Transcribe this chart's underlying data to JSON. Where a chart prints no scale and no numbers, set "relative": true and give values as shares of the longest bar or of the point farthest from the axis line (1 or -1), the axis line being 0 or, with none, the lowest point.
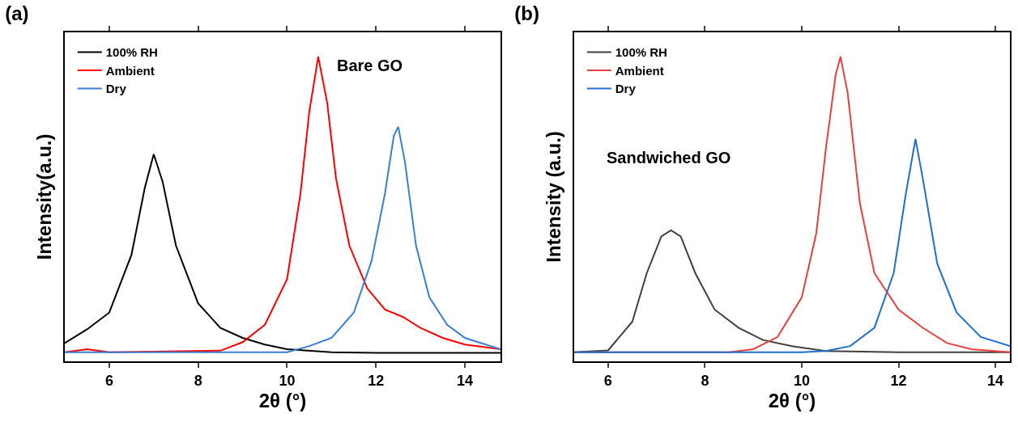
{
  "chart_data": [
    {
      "type": "line",
      "title": "(a)",
      "xlabel": "2θ (°)",
      "ylabel": "Intensity(a.u.)",
      "annotations": [
        "Bare GO"
      ],
      "relative": true,
      "legend": "top left",
      "grid": false,
      "xlim": [
        5,
        14.8
      ],
      "xticks": [
        6,
        8,
        10,
        12,
        14
      ],
      "series": [
        {
          "name": "100% RH",
          "color": "#000000",
          "x": [
            5,
            5.5,
            6,
            6.5,
            6.8,
            7,
            7.2,
            7.5,
            8,
            8.5,
            9,
            9.5,
            10,
            11,
            12,
            13,
            14,
            14.8
          ],
          "values": [
            0.06,
            0.105,
            0.16,
            0.35,
            0.57,
            0.68,
            0.59,
            0.38,
            0.19,
            0.11,
            0.077,
            0.055,
            0.04,
            0.03,
            0.028,
            0.028,
            0.028,
            0.028
          ]
        },
        {
          "name": "Ambient",
          "color": "#ff0000",
          "x": [
            5,
            5.5,
            6,
            8.5,
            9,
            9.5,
            10,
            10.3,
            10.5,
            10.7,
            10.9,
            11.1,
            11.4,
            11.8,
            12.2,
            12.6,
            13,
            13.5,
            14,
            14.8
          ],
          "values": [
            0.03,
            0.04,
            0.03,
            0.035,
            0.063,
            0.12,
            0.27,
            0.55,
            0.82,
            1,
            0.85,
            0.6,
            0.38,
            0.24,
            0.17,
            0.146,
            0.11,
            0.077,
            0.055,
            0.04
          ]
        },
        {
          "name": "Dry",
          "color": "#3a7fd5",
          "x": [
            5,
            6,
            7,
            8,
            9,
            10,
            10.5,
            11,
            11.5,
            11.9,
            12.2,
            12.4,
            12.5,
            12.65,
            12.9,
            13.2,
            13.6,
            14,
            14.8
          ],
          "values": [
            0.03,
            0.03,
            0.03,
            0.03,
            0.03,
            0.03,
            0.05,
            0.077,
            0.16,
            0.33,
            0.55,
            0.74,
            0.77,
            0.655,
            0.38,
            0.21,
            0.12,
            0.077,
            0.04
          ]
        }
      ]
    },
    {
      "type": "line",
      "title": "(b)",
      "xlabel": "2θ (°)",
      "ylabel": "Intensity (a.u.)",
      "annotations": [
        "Sandwiched GO"
      ],
      "relative": true,
      "legend": "top left",
      "grid": false,
      "xlim": [
        5.3,
        14.3
      ],
      "xticks": [
        6,
        8,
        10,
        12,
        14
      ],
      "series": [
        {
          "name": "100% RH",
          "color": "#404040",
          "x": [
            5.3,
            6,
            6.5,
            6.8,
            7.1,
            7.3,
            7.5,
            7.8,
            8.2,
            8.7,
            9.2,
            9.8,
            10.5,
            12,
            14.3
          ],
          "values": [
            0.03,
            0.036,
            0.13,
            0.29,
            0.41,
            0.43,
            0.41,
            0.29,
            0.17,
            0.11,
            0.07,
            0.05,
            0.034,
            0.03,
            0.03
          ]
        },
        {
          "name": "Ambient",
          "color": "#e84040",
          "x": [
            5.3,
            8.5,
            9,
            9.5,
            10,
            10.3,
            10.5,
            10.7,
            10.8,
            10.95,
            11.2,
            11.5,
            12,
            12.5,
            13,
            13.5,
            14.3
          ],
          "values": [
            0.03,
            0.03,
            0.04,
            0.08,
            0.21,
            0.42,
            0.7,
            0.94,
            1,
            0.88,
            0.52,
            0.29,
            0.17,
            0.11,
            0.06,
            0.04,
            0.03
          ]
        },
        {
          "name": "Dry",
          "color": "#1f6fd0",
          "x": [
            5.3,
            7,
            9,
            10,
            10.5,
            11,
            11.5,
            11.9,
            12.15,
            12.35,
            12.5,
            12.8,
            13.2,
            13.7,
            14.3
          ],
          "values": [
            0.03,
            0.03,
            0.03,
            0.03,
            0.034,
            0.05,
            0.11,
            0.29,
            0.55,
            0.73,
            0.6,
            0.32,
            0.16,
            0.08,
            0.05
          ]
        }
      ]
    }
  ]
}
